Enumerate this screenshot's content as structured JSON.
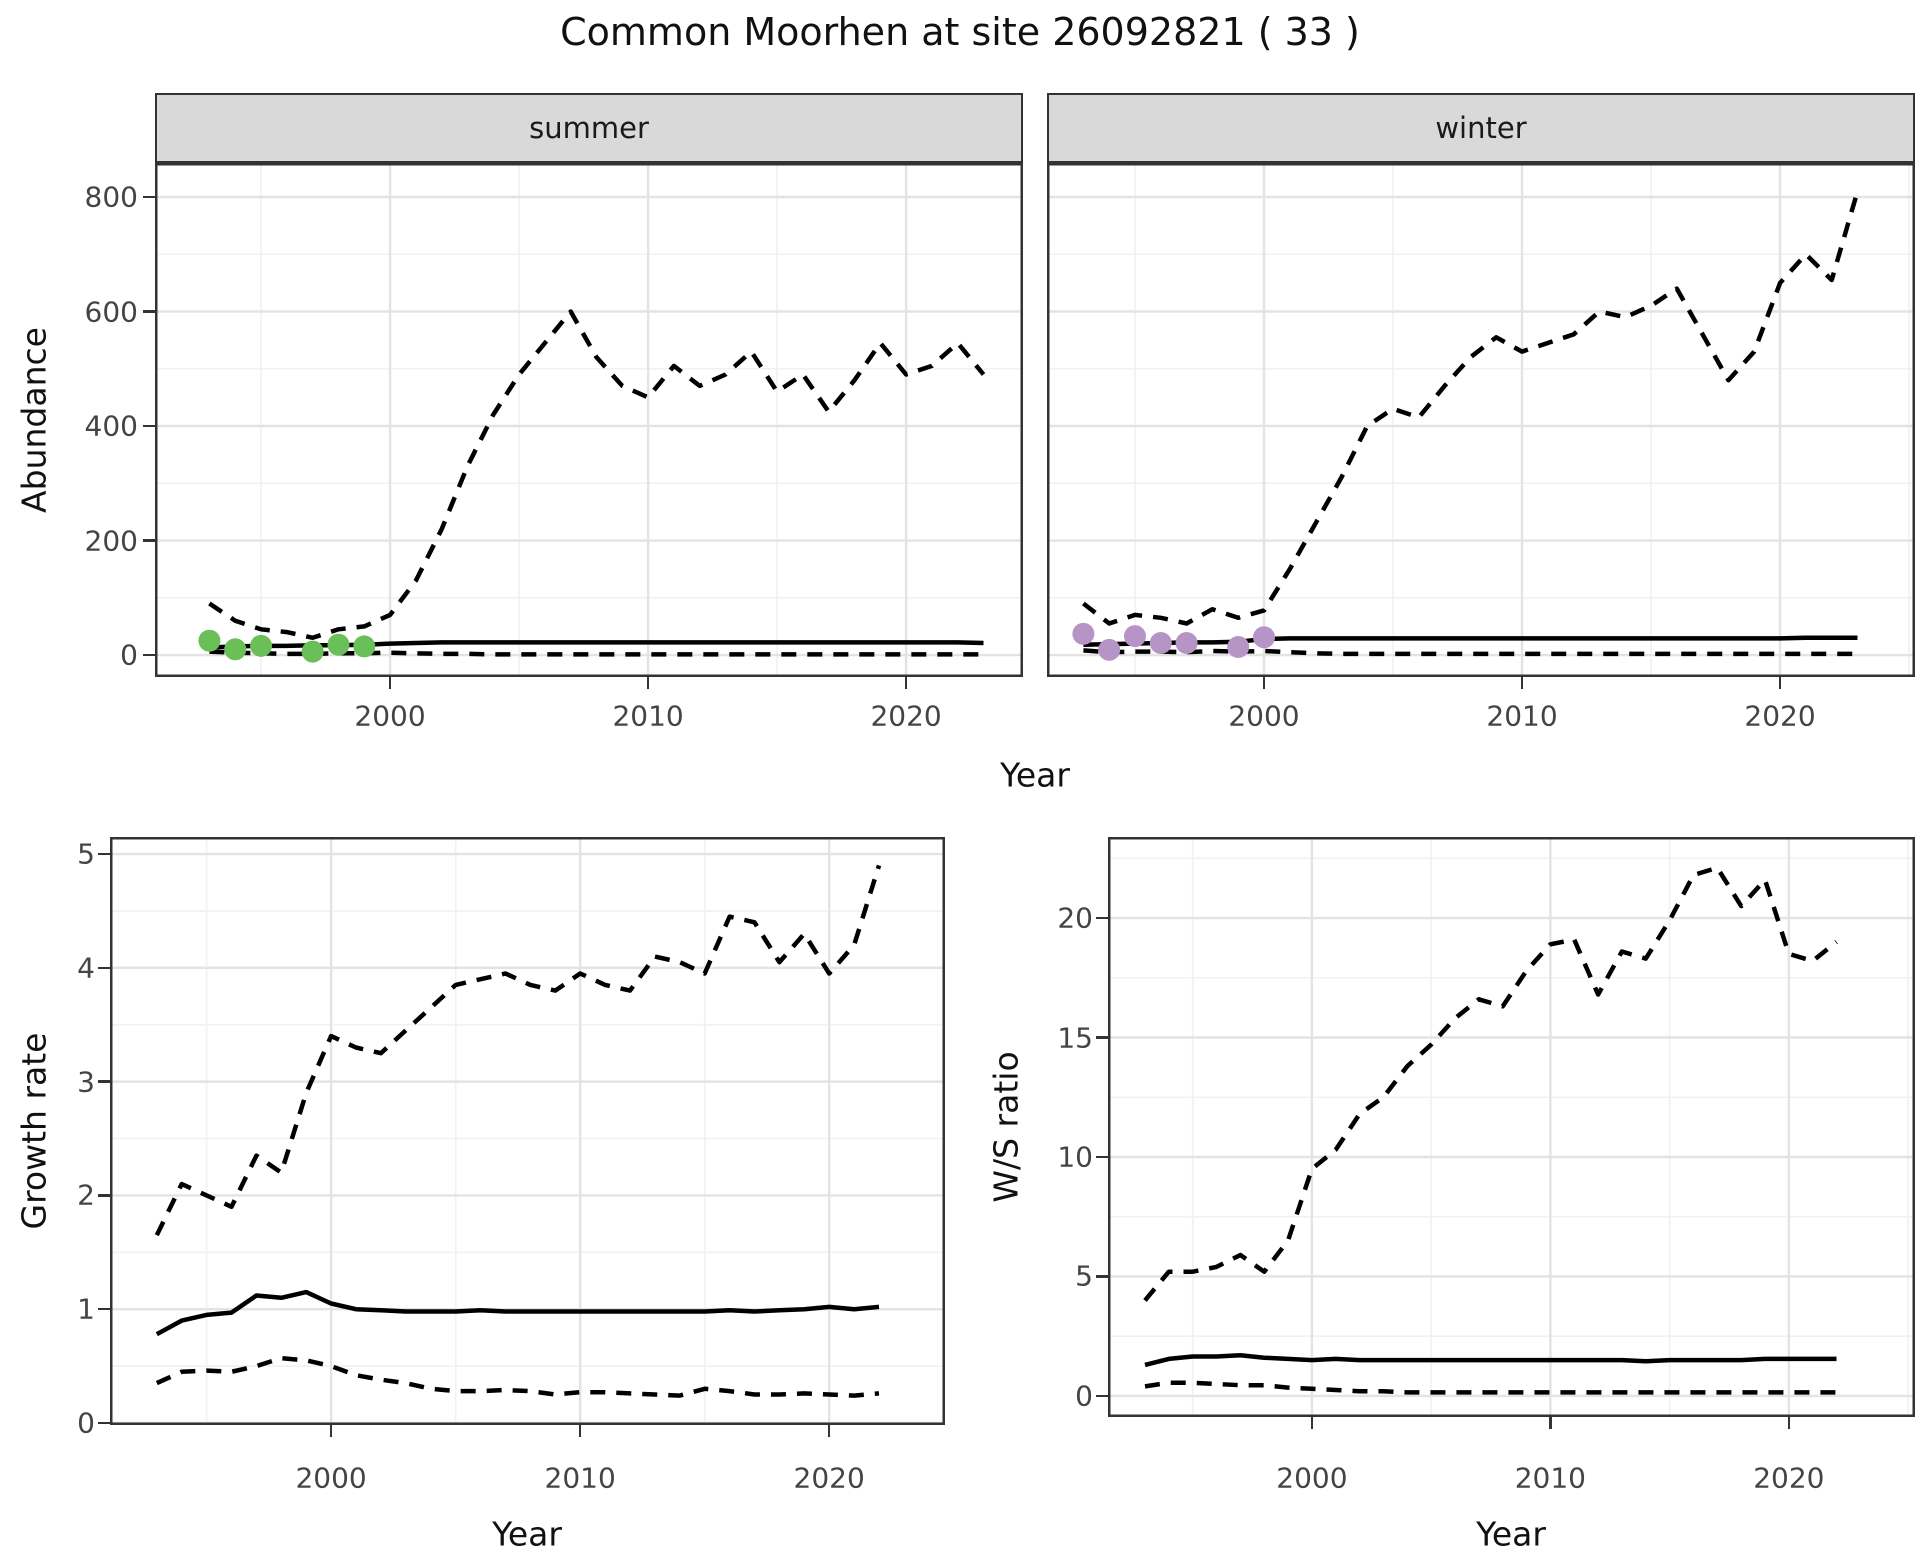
{
  "title": "Common Moorhen at site 26092821 ( 33 )",
  "axis": {
    "x_label": "Year",
    "abundance_label": "Abundance",
    "growth_label": "Growth rate",
    "ratio_label": "W/S ratio"
  },
  "facets": {
    "summer": "summer",
    "winter": "winter"
  },
  "colors": {
    "summer_points": "#6bbf59",
    "winter_points": "#b794c6",
    "line": "#000000",
    "grid_major": "#e3e3e3",
    "grid_minor": "#f1f1f1",
    "strip_bg": "#d9d9d9",
    "panel_border": "#333333",
    "tick_text": "#444444"
  },
  "chart_data": [
    {
      "id": "abundance_summer",
      "type": "line",
      "facet": "summer",
      "xlabel": "Year",
      "ylabel": "Abundance",
      "xlim": [
        1990.89,
        2024.53
      ],
      "ylim": [
        -38.4,
        859.4
      ],
      "xticks": [
        2000,
        2010,
        2020
      ],
      "xticks_minor": [
        1995,
        2005,
        2015
      ],
      "yticks": [
        0,
        200,
        400,
        600,
        800
      ],
      "yticks_minor": [
        100,
        300,
        500,
        700
      ],
      "x": [
        1993,
        1994,
        1995,
        1996,
        1997,
        1998,
        1999,
        2000,
        2001,
        2002,
        2003,
        2004,
        2005,
        2006,
        2007,
        2008,
        2009,
        2010,
        2011,
        2012,
        2013,
        2014,
        2015,
        2016,
        2017,
        2018,
        2019,
        2020,
        2021,
        2022,
        2023
      ],
      "series": [
        {
          "name": "upper_ci",
          "style": "dashed",
          "values": [
            90,
            60,
            45,
            40,
            30,
            45,
            50,
            70,
            130,
            220,
            330,
            420,
            490,
            545,
            600,
            520,
            470,
            450,
            505,
            470,
            490,
            530,
            460,
            490,
            425,
            480,
            545,
            490,
            505,
            545,
            490
          ]
        },
        {
          "name": "median",
          "style": "solid",
          "values": [
            13,
            15,
            16,
            16,
            17,
            17,
            18,
            20,
            21,
            22,
            22,
            22,
            22,
            22,
            22,
            22,
            22,
            22,
            22,
            22,
            22,
            22,
            22,
            22,
            22,
            22,
            22,
            22,
            22,
            22,
            21
          ]
        },
        {
          "name": "lower_ci",
          "style": "dashed",
          "values": [
            6,
            4,
            3,
            2,
            2,
            3,
            3,
            4,
            3,
            2,
            2,
            1,
            1,
            1,
            1,
            1,
            1,
            1,
            1,
            1,
            1,
            1,
            1,
            1,
            1,
            1,
            1,
            1,
            1,
            1,
            1
          ]
        }
      ],
      "points": {
        "name": "observed_counts",
        "color": "#6bbf59",
        "x": [
          1993,
          1994,
          1995,
          1997,
          1998,
          1999
        ],
        "y": [
          25,
          10,
          16,
          6,
          18,
          15
        ]
      }
    },
    {
      "id": "abundance_winter",
      "type": "line",
      "facet": "winter",
      "xlabel": "Year",
      "ylabel": "Abundance",
      "xlim": [
        1991.59,
        2025.23
      ],
      "ylim": [
        -38.4,
        859.4
      ],
      "xticks": [
        2000,
        2010,
        2020
      ],
      "xticks_minor": [
        1995,
        2005,
        2015,
        2025
      ],
      "yticks": [
        0,
        200,
        400,
        600,
        800
      ],
      "yticks_minor": [
        100,
        300,
        500,
        700
      ],
      "x": [
        1993,
        1994,
        1995,
        1996,
        1997,
        1998,
        1999,
        2000,
        2001,
        2002,
        2003,
        2004,
        2005,
        2006,
        2007,
        2008,
        2009,
        2010,
        2011,
        2012,
        2013,
        2014,
        2015,
        2016,
        2017,
        2018,
        2019,
        2020,
        2021,
        2022,
        2023
      ],
      "series": [
        {
          "name": "upper_ci",
          "style": "dashed",
          "values": [
            90,
            55,
            70,
            65,
            55,
            80,
            65,
            78,
            150,
            230,
            310,
            400,
            430,
            415,
            470,
            520,
            555,
            530,
            545,
            560,
            600,
            590,
            610,
            640,
            560,
            480,
            530,
            650,
            700,
            655,
            810
          ]
        },
        {
          "name": "median",
          "style": "solid",
          "values": [
            18,
            19,
            20,
            21,
            22,
            22,
            23,
            28,
            29,
            29,
            29,
            29,
            29,
            29,
            29,
            29,
            29,
            29,
            29,
            29,
            29,
            29,
            29,
            29,
            29,
            29,
            29,
            29,
            30,
            30,
            30
          ]
        },
        {
          "name": "lower_ci",
          "style": "dashed",
          "values": [
            8,
            5,
            6,
            6,
            5,
            7,
            6,
            7,
            5,
            3,
            2,
            2,
            2,
            2,
            2,
            2,
            2,
            2,
            2,
            2,
            2,
            2,
            2,
            2,
            2,
            2,
            2,
            2,
            2,
            2,
            2
          ]
        }
      ],
      "points": {
        "name": "observed_counts",
        "color": "#b794c6",
        "x": [
          1993,
          1994,
          1995,
          1996,
          1997,
          1999,
          2000
        ],
        "y": [
          37,
          9,
          33,
          21,
          21,
          14,
          31
        ]
      }
    },
    {
      "id": "growth_rate",
      "type": "line",
      "xlabel": "Year",
      "ylabel": "Growth rate",
      "xlim": [
        1991.12,
        2024.65
      ],
      "ylim": [
        -0.018,
        5.15
      ],
      "xticks": [
        2000,
        2010,
        2020
      ],
      "xticks_minor": [
        1995,
        2005,
        2015
      ],
      "yticks": [
        0,
        1,
        2,
        3,
        4,
        5
      ],
      "yticks_minor": [
        0.5,
        1.5,
        2.5,
        3.5,
        4.5
      ],
      "x": [
        1993,
        1994,
        1995,
        1996,
        1997,
        1998,
        1999,
        2000,
        2001,
        2002,
        2003,
        2004,
        2005,
        2006,
        2007,
        2008,
        2009,
        2010,
        2011,
        2012,
        2013,
        2014,
        2015,
        2016,
        2017,
        2018,
        2019,
        2020,
        2021,
        2022
      ],
      "series": [
        {
          "name": "upper_ci",
          "style": "dashed",
          "values": [
            1.65,
            2.1,
            2.0,
            1.9,
            2.35,
            2.2,
            2.9,
            3.4,
            3.3,
            3.25,
            3.45,
            3.65,
            3.85,
            3.9,
            3.95,
            3.85,
            3.8,
            3.95,
            3.85,
            3.8,
            4.1,
            4.05,
            3.95,
            4.45,
            4.4,
            4.05,
            4.3,
            3.95,
            4.2,
            4.9
          ]
        },
        {
          "name": "median",
          "style": "solid",
          "values": [
            0.78,
            0.9,
            0.95,
            0.97,
            1.12,
            1.1,
            1.15,
            1.05,
            1.0,
            0.99,
            0.98,
            0.98,
            0.98,
            0.99,
            0.98,
            0.98,
            0.98,
            0.98,
            0.98,
            0.98,
            0.98,
            0.98,
            0.98,
            0.99,
            0.98,
            0.99,
            1.0,
            1.02,
            1.0,
            1.02
          ]
        },
        {
          "name": "lower_ci",
          "style": "dashed",
          "values": [
            0.35,
            0.45,
            0.46,
            0.45,
            0.5,
            0.57,
            0.55,
            0.5,
            0.42,
            0.38,
            0.35,
            0.3,
            0.28,
            0.28,
            0.29,
            0.28,
            0.25,
            0.27,
            0.27,
            0.26,
            0.25,
            0.24,
            0.3,
            0.28,
            0.25,
            0.25,
            0.26,
            0.25,
            0.24,
            0.26
          ]
        }
      ]
    },
    {
      "id": "ws_ratio",
      "type": "line",
      "xlabel": "Year",
      "ylabel": "W/S ratio",
      "xlim": [
        1991.45,
        2025.29
      ],
      "ylim": [
        -0.88,
        23.39
      ],
      "xticks": [
        2000,
        2010,
        2020
      ],
      "xticks_minor": [
        1995,
        2005,
        2015,
        2025
      ],
      "yticks": [
        0,
        5,
        10,
        15,
        20
      ],
      "yticks_minor": [
        2.5,
        7.5,
        12.5,
        17.5,
        22.5
      ],
      "x": [
        1993,
        1994,
        1995,
        1996,
        1997,
        1998,
        1999,
        2000,
        2001,
        2002,
        2003,
        2004,
        2005,
        2006,
        2007,
        2008,
        2009,
        2010,
        2011,
        2012,
        2013,
        2014,
        2015,
        2016,
        2017,
        2018,
        2019,
        2020,
        2021,
        2022
      ],
      "series": [
        {
          "name": "upper_ci",
          "style": "dashed",
          "values": [
            4.0,
            5.2,
            5.2,
            5.4,
            5.9,
            5.2,
            6.5,
            9.5,
            10.3,
            11.8,
            12.5,
            13.8,
            14.7,
            15.8,
            16.6,
            16.3,
            17.8,
            18.9,
            19.1,
            16.8,
            18.6,
            18.3,
            19.9,
            21.8,
            22.1,
            20.5,
            21.6,
            18.5,
            18.2,
            19.0
          ]
        },
        {
          "name": "median",
          "style": "solid",
          "values": [
            1.3,
            1.55,
            1.65,
            1.65,
            1.7,
            1.6,
            1.55,
            1.5,
            1.55,
            1.5,
            1.5,
            1.5,
            1.5,
            1.5,
            1.5,
            1.5,
            1.5,
            1.5,
            1.5,
            1.5,
            1.5,
            1.45,
            1.5,
            1.5,
            1.5,
            1.5,
            1.55,
            1.55,
            1.55,
            1.55
          ]
        },
        {
          "name": "lower_ci",
          "style": "dashed",
          "values": [
            0.4,
            0.55,
            0.55,
            0.5,
            0.45,
            0.45,
            0.35,
            0.3,
            0.25,
            0.2,
            0.2,
            0.15,
            0.15,
            0.15,
            0.15,
            0.15,
            0.15,
            0.15,
            0.15,
            0.15,
            0.15,
            0.15,
            0.15,
            0.15,
            0.15,
            0.15,
            0.15,
            0.15,
            0.15,
            0.15
          ]
        }
      ]
    }
  ]
}
